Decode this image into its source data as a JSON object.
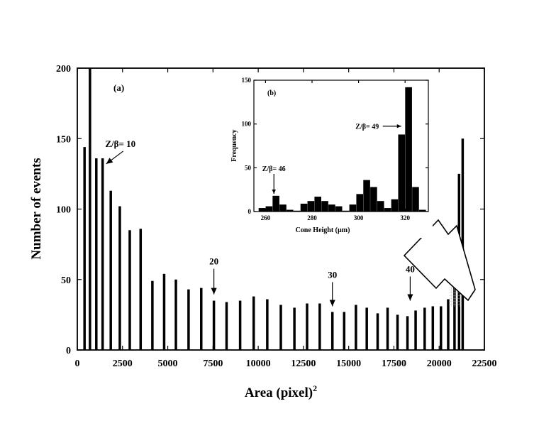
{
  "chart_data": [
    {
      "panel": "(a)",
      "type": "bar",
      "xlabel": "Area (pixel)",
      "xlabel_sup": "2",
      "ylabel": "Number of events",
      "xlim": [
        0,
        22500
      ],
      "ylim": [
        0,
        200
      ],
      "xticks": [
        "0",
        "2500",
        "5000",
        "7500",
        "10000",
        "12500",
        "15000",
        "17500",
        "20000",
        "22500"
      ],
      "yticks": [
        "0",
        "50",
        "100",
        "150",
        "200"
      ],
      "x": [
        400,
        700,
        1050,
        1400,
        1850,
        2350,
        2900,
        3500,
        4150,
        4800,
        5450,
        6150,
        6850,
        7550,
        8250,
        9000,
        9750,
        10500,
        11250,
        12000,
        12700,
        13400,
        14100,
        14750,
        15400,
        16000,
        16600,
        17150,
        17700,
        18250,
        18700,
        19200,
        19650,
        20100,
        20500,
        20850,
        21100,
        21300
      ],
      "values": [
        144,
        200,
        136,
        136,
        113,
        102,
        85,
        86,
        49,
        54,
        50,
        43,
        44,
        35,
        34,
        35,
        38,
        36,
        32,
        30,
        33,
        33,
        27,
        27,
        32,
        30,
        26,
        30,
        25,
        24,
        28,
        30,
        31,
        31,
        36,
        50,
        125,
        150
      ],
      "annotations": [
        {
          "text": "Z/β= 10",
          "x": 1400,
          "y": 129
        },
        {
          "text": "20",
          "x": 7550,
          "y": 38
        },
        {
          "text": "30",
          "x": 14100,
          "y": 30
        },
        {
          "text": "40",
          "x": 18400,
          "y": 34
        }
      ]
    },
    {
      "panel": "(b)",
      "type": "bar",
      "xlabel": "Cone Height (µm)",
      "ylabel": "Frequency",
      "xlim": [
        255,
        330
      ],
      "ylim": [
        0,
        150
      ],
      "xticks": [
        "260",
        "280",
        "300",
        "320"
      ],
      "yticks": [
        "0",
        "50",
        "100",
        "150"
      ],
      "x": [
        258.5,
        261.5,
        264.5,
        267.5,
        270.5,
        273.5,
        276.5,
        279.5,
        282.5,
        285.5,
        288.5,
        291.5,
        294.5,
        297.5,
        300.5,
        303.5,
        306.5,
        309.5,
        312.5,
        315.5,
        318.5,
        321.5,
        324.5,
        327.5
      ],
      "values": [
        4,
        6,
        18,
        8,
        2,
        1,
        9,
        12,
        17,
        12,
        8,
        6,
        1,
        8,
        20,
        36,
        28,
        12,
        4,
        14,
        88,
        142,
        28,
        2
      ],
      "annotations": [
        {
          "text": "Z/β= 46",
          "x": 263,
          "y": 30
        },
        {
          "text": "Z/β= 49",
          "x": 322,
          "y": 104
        }
      ]
    }
  ]
}
